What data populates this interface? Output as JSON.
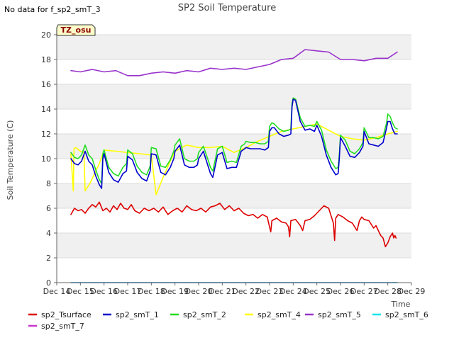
{
  "header": {
    "no_data": "No data for f_sp2_smT_3",
    "site_tag": "TZ_osu"
  },
  "chart_data": {
    "type": "line",
    "title": "SP2 Soil Temperature",
    "xlabel": "Time",
    "ylabel": "Soil Temperature (C)",
    "ylim": [
      0,
      20
    ],
    "xlim": [
      0,
      15
    ],
    "yticks": [
      0,
      2,
      4,
      6,
      8,
      10,
      12,
      14,
      16,
      18,
      20
    ],
    "xtick_positions": [
      0,
      1,
      2,
      3,
      4,
      5,
      6,
      7,
      8,
      9,
      10,
      11,
      12,
      13,
      14,
      15
    ],
    "xtick_labels": [
      "Dec 14",
      "Dec 15",
      "Dec 16",
      "Dec 17",
      "Dec 18",
      "Dec 19",
      "Dec 20",
      "Dec 21",
      "Dec 22",
      "Dec 23",
      "Dec 24",
      "Dec 25",
      "Dec 26",
      "Dec 27",
      "Dec 28",
      "Dec 29"
    ],
    "x_units": "days since Dec 14",
    "grid": "horizontal bands",
    "legend_position": "bottom",
    "series": [
      {
        "name": "sp2_Tsurface",
        "color": "#dd0000",
        "x": [
          0.6,
          0.75,
          0.9,
          1.05,
          1.2,
          1.35,
          1.5,
          1.65,
          1.8,
          1.95,
          2.1,
          2.25,
          2.4,
          2.55,
          2.7,
          2.85,
          3.0,
          3.15,
          3.3,
          3.5,
          3.7,
          3.9,
          4.1,
          4.3,
          4.5,
          4.7,
          4.9,
          5.1,
          5.3,
          5.5,
          5.7,
          5.9,
          6.1,
          6.3,
          6.5,
          6.7,
          6.9,
          7.1,
          7.3,
          7.5,
          7.7,
          7.9,
          8.1,
          8.3,
          8.5,
          8.7,
          8.9,
          9.0,
          9.05,
          9.1,
          9.3,
          9.5,
          9.7,
          9.8,
          9.85,
          9.9,
          10.1,
          10.3,
          10.4,
          10.5,
          10.7,
          10.9,
          11.1,
          11.3,
          11.5,
          11.7,
          11.75,
          11.8,
          11.9,
          12.1,
          12.3,
          12.5,
          12.7,
          12.8,
          12.9,
          13.0,
          13.2,
          13.4,
          13.5,
          13.6,
          13.7,
          13.8,
          13.9,
          14.0,
          14.1,
          14.2,
          14.25,
          14.3,
          14.35
        ],
        "y": [
          5.5,
          6.0,
          5.8,
          5.9,
          5.6,
          6.0,
          6.3,
          6.1,
          6.5,
          5.8,
          6.0,
          5.7,
          6.2,
          5.9,
          6.4,
          6.0,
          5.9,
          6.3,
          5.8,
          5.6,
          6.0,
          5.8,
          6.0,
          5.7,
          6.1,
          5.5,
          5.8,
          6.0,
          5.7,
          6.2,
          5.9,
          5.8,
          6.0,
          5.7,
          6.1,
          6.2,
          6.4,
          5.9,
          6.2,
          5.8,
          6.0,
          5.6,
          5.4,
          5.5,
          5.2,
          5.5,
          5.3,
          4.5,
          4.1,
          5.0,
          5.2,
          4.9,
          4.8,
          4.5,
          3.7,
          5.0,
          5.1,
          4.6,
          4.2,
          5.0,
          5.1,
          5.4,
          5.8,
          6.2,
          6.0,
          4.8,
          3.4,
          5.2,
          5.5,
          5.3,
          5.0,
          4.8,
          4.2,
          5.0,
          5.3,
          5.1,
          5.0,
          4.4,
          4.6,
          4.2,
          3.8,
          3.6,
          2.9,
          3.2,
          3.7,
          4.0,
          3.6,
          3.8,
          3.6
        ]
      },
      {
        "name": "sp2_smT_1",
        "color": "#0000cc",
        "x": [
          0.6,
          0.75,
          0.9,
          1.05,
          1.2,
          1.35,
          1.5,
          1.65,
          1.8,
          1.9,
          1.95,
          2.0,
          2.2,
          2.4,
          2.6,
          2.8,
          2.95,
          3.0,
          3.2,
          3.4,
          3.6,
          3.8,
          3.95,
          4.0,
          4.2,
          4.4,
          4.6,
          4.8,
          4.95,
          5.0,
          5.2,
          5.4,
          5.6,
          5.8,
          5.95,
          6.0,
          6.2,
          6.4,
          6.5,
          6.6,
          6.8,
          7.0,
          7.2,
          7.4,
          7.6,
          7.8,
          7.95,
          8.0,
          8.2,
          8.4,
          8.6,
          8.8,
          8.95,
          9.0,
          9.1,
          9.2,
          9.4,
          9.6,
          9.8,
          9.9,
          9.95,
          10.0,
          10.1,
          10.3,
          10.5,
          10.7,
          10.9,
          11.0,
          11.2,
          11.4,
          11.6,
          11.8,
          11.9,
          11.95,
          12.0,
          12.2,
          12.4,
          12.6,
          12.8,
          12.95,
          13.0,
          13.2,
          13.4,
          13.6,
          13.8,
          13.95,
          14.0,
          14.1,
          14.2,
          14.3,
          14.4
        ],
        "y": [
          10.0,
          9.6,
          9.5,
          9.8,
          10.6,
          9.8,
          9.5,
          8.6,
          7.9,
          7.6,
          10.0,
          10.4,
          8.9,
          8.3,
          8.1,
          8.8,
          9.0,
          10.2,
          9.9,
          8.9,
          8.4,
          8.2,
          9.0,
          10.4,
          10.3,
          8.9,
          8.7,
          9.3,
          10.0,
          10.6,
          11.1,
          9.5,
          9.3,
          9.3,
          9.5,
          10.0,
          10.6,
          9.4,
          8.8,
          8.5,
          10.3,
          10.5,
          9.2,
          9.3,
          9.3,
          10.6,
          10.8,
          10.9,
          10.8,
          10.8,
          10.8,
          10.7,
          10.9,
          12.2,
          12.5,
          12.5,
          12.0,
          11.8,
          11.9,
          12.0,
          14.2,
          14.8,
          14.7,
          13.0,
          12.3,
          12.4,
          12.2,
          12.7,
          11.8,
          10.3,
          9.3,
          8.7,
          8.8,
          10.0,
          11.7,
          11.0,
          10.2,
          10.1,
          10.5,
          11.0,
          12.2,
          11.2,
          11.1,
          11.0,
          11.3,
          12.5,
          13.0,
          13.0,
          12.4,
          12.0,
          12.0
        ]
      },
      {
        "name": "sp2_smT_2",
        "color": "#22dd22",
        "x": [
          0.6,
          0.75,
          0.9,
          1.05,
          1.2,
          1.35,
          1.5,
          1.65,
          1.8,
          1.9,
          1.95,
          2.0,
          2.2,
          2.4,
          2.6,
          2.8,
          2.95,
          3.0,
          3.2,
          3.4,
          3.6,
          3.8,
          3.95,
          4.0,
          4.2,
          4.4,
          4.6,
          4.8,
          4.95,
          5.0,
          5.2,
          5.4,
          5.6,
          5.8,
          5.95,
          6.0,
          6.2,
          6.4,
          6.5,
          6.6,
          6.8,
          7.0,
          7.2,
          7.4,
          7.6,
          7.8,
          7.95,
          8.0,
          8.2,
          8.4,
          8.6,
          8.8,
          8.95,
          9.0,
          9.1,
          9.2,
          9.4,
          9.6,
          9.8,
          9.9,
          9.95,
          10.0,
          10.1,
          10.3,
          10.5,
          10.7,
          10.9,
          11.0,
          11.2,
          11.4,
          11.6,
          11.8,
          11.9,
          11.95,
          12.0,
          12.2,
          12.4,
          12.6,
          12.8,
          12.95,
          13.0,
          13.2,
          13.4,
          13.6,
          13.8,
          13.95,
          14.0,
          14.1,
          14.2,
          14.3,
          14.4
        ],
        "y": [
          10.5,
          10.1,
          10.0,
          10.3,
          11.1,
          10.3,
          10.0,
          9.1,
          8.3,
          8.0,
          10.4,
          10.7,
          9.3,
          8.8,
          8.6,
          9.3,
          9.6,
          10.7,
          10.4,
          9.4,
          8.9,
          8.7,
          9.4,
          10.9,
          10.8,
          9.4,
          9.3,
          9.9,
          10.6,
          11.1,
          11.6,
          10.0,
          9.8,
          9.8,
          10.0,
          10.5,
          11.0,
          9.9,
          9.3,
          9.0,
          10.8,
          11.0,
          9.7,
          9.8,
          9.7,
          11.0,
          11.2,
          11.4,
          11.3,
          11.3,
          11.2,
          11.2,
          11.4,
          12.6,
          12.9,
          12.8,
          12.4,
          12.2,
          12.3,
          12.4,
          14.5,
          14.9,
          14.8,
          13.3,
          12.6,
          12.7,
          12.6,
          13.0,
          12.3,
          10.7,
          9.8,
          9.2,
          9.3,
          10.3,
          11.9,
          11.5,
          10.6,
          10.4,
          10.8,
          11.3,
          12.5,
          11.7,
          11.7,
          11.6,
          11.8,
          12.9,
          13.6,
          13.4,
          12.9,
          12.5,
          12.4
        ]
      },
      {
        "name": "sp2_smT_4",
        "color": "#ffff00",
        "x": [
          0.6,
          0.7,
          0.73,
          0.8,
          1.0,
          1.15,
          1.2,
          1.4,
          1.6,
          1.8,
          2.0,
          2.5,
          3.0,
          3.5,
          4.0,
          4.2,
          4.5,
          4.8,
          5.0,
          5.5,
          6.0,
          6.5,
          7.0,
          7.5,
          8.0,
          8.5,
          9.0,
          9.5,
          10.0,
          10.5,
          11.0,
          11.5,
          12.0,
          12.5,
          13.0,
          13.5,
          14.0,
          14.4
        ],
        "y": [
          10.4,
          7.4,
          10.8,
          10.9,
          10.6,
          10.5,
          7.4,
          8.0,
          8.8,
          9.6,
          10.7,
          10.6,
          10.5,
          10.4,
          10.3,
          7.1,
          8.5,
          9.8,
          10.6,
          11.1,
          10.9,
          10.9,
          11.0,
          10.5,
          10.9,
          11.4,
          11.8,
          12.2,
          12.4,
          12.6,
          12.8,
          12.3,
          11.8,
          11.6,
          11.5,
          11.7,
          12.0,
          12.2
        ]
      },
      {
        "name": "sp2_smT_5",
        "color": "#9933cc",
        "x": [
          0.6,
          1.0,
          1.5,
          2.0,
          2.5,
          3.0,
          3.5,
          4.0,
          4.5,
          5.0,
          5.5,
          6.0,
          6.5,
          7.0,
          7.5,
          8.0,
          8.5,
          9.0,
          9.5,
          10.0,
          10.5,
          11.0,
          11.5,
          12.0,
          12.5,
          13.0,
          13.5,
          14.0,
          14.4
        ],
        "y": [
          17.1,
          17.0,
          17.2,
          17.0,
          17.1,
          16.7,
          16.7,
          16.9,
          17.0,
          16.9,
          17.1,
          17.0,
          17.3,
          17.2,
          17.3,
          17.2,
          17.4,
          17.6,
          18.0,
          18.1,
          18.8,
          18.7,
          18.6,
          18.0,
          18.0,
          17.9,
          18.1,
          18.1,
          18.6
        ]
      },
      {
        "name": "sp2_smT_6",
        "color": "#00e5ee",
        "x": [
          0.6,
          14.4
        ],
        "y": [
          0.0,
          0.0
        ]
      },
      {
        "name": "sp2_smT_7",
        "color": "#cc33cc",
        "x": [
          0.6,
          14.4
        ],
        "y": [
          0.0,
          0.0
        ]
      }
    ]
  }
}
